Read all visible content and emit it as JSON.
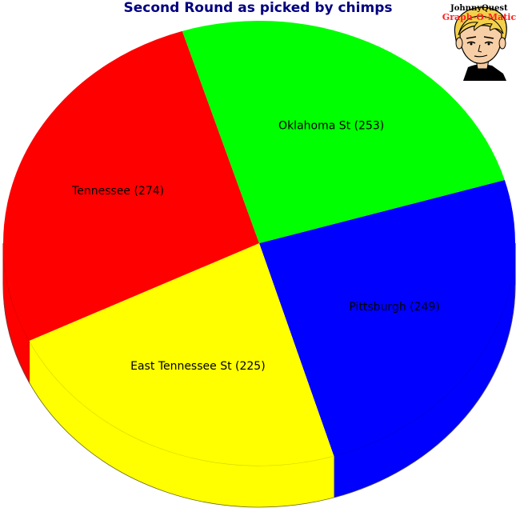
{
  "chart_data": {
    "type": "pie",
    "title": "Second Round as picked by chimps",
    "slices": [
      {
        "label": "Pittsburgh (249)",
        "name": "Pittsburgh",
        "value": 249,
        "color": "#0000ff"
      },
      {
        "label": "East Tennessee St (225)",
        "name": "East Tennessee St",
        "value": 225,
        "color": "#ffff00"
      },
      {
        "label": "Tennessee (274)",
        "name": "Tennessee",
        "value": 274,
        "color": "#ff0000"
      },
      {
        "label": "Oklahoma St (253)",
        "name": "Oklahoma St",
        "value": 253,
        "color": "#00ff00"
      }
    ],
    "style": "3d",
    "legend": "none"
  },
  "logo": {
    "line1": "JohnnyQuest",
    "line2": "Graph-O-Matic"
  }
}
